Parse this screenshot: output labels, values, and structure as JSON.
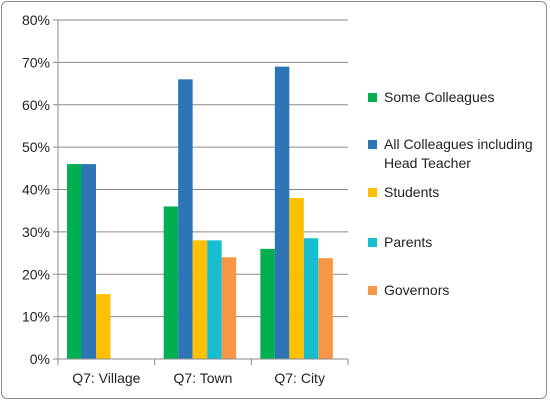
{
  "chart_data": {
    "type": "bar",
    "title": "",
    "xlabel": "",
    "ylabel": "",
    "categories": [
      "Q7: Village",
      "Q7: Town",
      "Q7: City"
    ],
    "ylim": [
      0,
      80
    ],
    "yticks": [
      "0%",
      "10%",
      "20%",
      "30%",
      "40%",
      "50%",
      "60%",
      "70%",
      "80%"
    ],
    "grid": true,
    "legend_position": "right",
    "series": [
      {
        "name": "Some Colleagues",
        "color": "#00b050",
        "values": [
          46,
          36,
          26
        ]
      },
      {
        "name": "All Colleagues including Head Teacher",
        "color": "#2e75b6",
        "values": [
          46,
          66,
          69
        ]
      },
      {
        "name": "Students",
        "color": "#ffc000",
        "values": [
          15.3,
          28,
          38
        ]
      },
      {
        "name": "Parents",
        "color": "#17becf",
        "values": [
          null,
          28,
          28.5
        ]
      },
      {
        "name": "Governors",
        "color": "#f79646",
        "values": [
          null,
          24,
          23.8
        ]
      }
    ],
    "legend_lines": [
      [
        "Some Colleagues"
      ],
      [
        "All Colleagues including",
        "Head Teacher"
      ],
      [
        "Students"
      ],
      [
        "Parents"
      ],
      [
        "Governors"
      ]
    ]
  }
}
